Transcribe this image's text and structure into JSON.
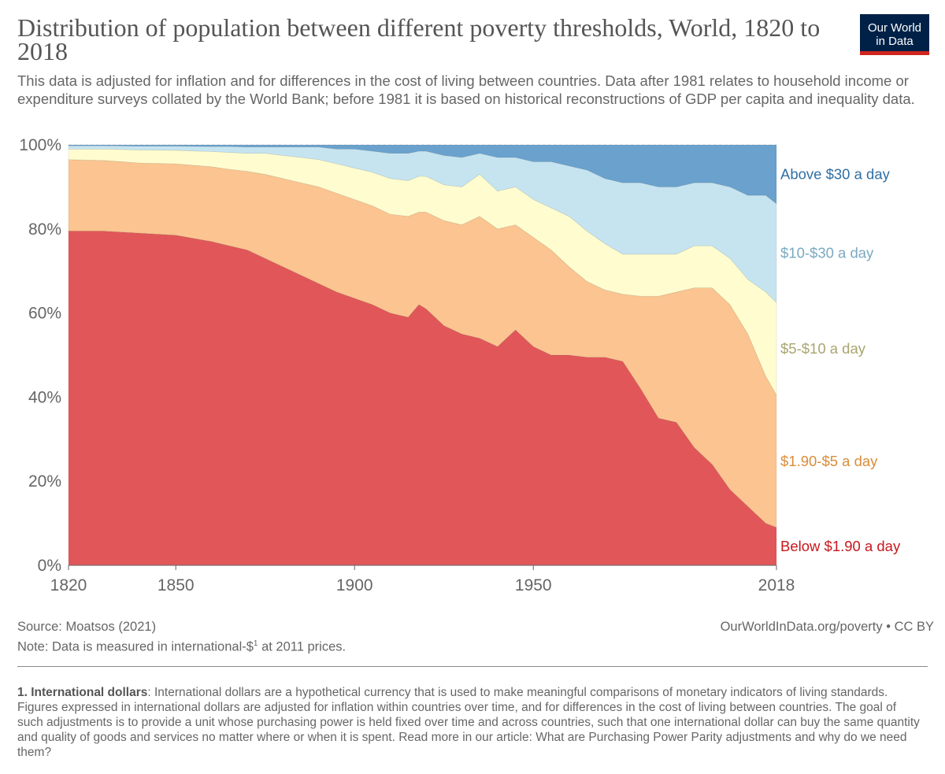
{
  "header": {
    "title": "Distribution of population between different poverty thresholds, World, 1820 to 2018",
    "subtitle": "This data is adjusted for inflation and for differences in the cost of living between countries. Data after 1981 relates to household income or expenditure surveys collated by the World Bank; before 1981 it is based on historical reconstructions of GDP per capita and inequality data.",
    "logo_line1": "Our World",
    "logo_line2": "in Data"
  },
  "footer": {
    "source": "Source: Moatsos (2021)",
    "note_prefix": "Note: Data is measured in international-$",
    "note_sup": "1",
    "note_suffix": " at 2011 prices.",
    "license": "OurWorldInData.org/poverty • CC BY",
    "footnote_title": "1. International dollars",
    "footnote_text": ": International dollars are a hypothetical currency that is used to make meaningful comparisons of monetary indicators of living standards. Figures expressed in international dollars are adjusted for inflation within countries over time, and for differences in the cost of living between countries. The goal of such adjustments is to provide a unit whose purchasing power is held fixed over time and across countries, such that one international dollar can buy the same quantity and quality of goods and services no matter where or when it is spent. Read more in our article: What are Purchasing Power Parity adjustments and why do we need them?"
  },
  "colors": {
    "below_1_90": "#e15759",
    "1_90_to_5": "#fbc490",
    "5_to_10": "#fffdcf",
    "10_to_30": "#c6e4f0",
    "above_30": "#6aa2cd",
    "label_below_1_90": "#c7171d",
    "label_1_90_to_5": "#d98d3a",
    "label_5_to_10": "#a9a570",
    "label_10_to_30": "#7aa9c0",
    "label_above_30": "#2f6fa3"
  },
  "chart_data": {
    "type": "area",
    "stacked": true,
    "xlim": [
      1820,
      2018
    ],
    "ylim": [
      0,
      100
    ],
    "x_ticks": [
      1820,
      1850,
      1900,
      1950,
      2018
    ],
    "y_ticks": [
      0,
      20,
      40,
      60,
      80,
      100
    ],
    "y_tick_labels": [
      "0%",
      "20%",
      "40%",
      "60%",
      "80%",
      "100%"
    ],
    "x": [
      1820,
      1830,
      1840,
      1850,
      1860,
      1865,
      1870,
      1875,
      1880,
      1885,
      1890,
      1895,
      1900,
      1905,
      1910,
      1915,
      1918,
      1920,
      1925,
      1930,
      1935,
      1940,
      1945,
      1950,
      1955,
      1960,
      1965,
      1970,
      1975,
      1980,
      1985,
      1990,
      1995,
      2000,
      2005,
      2010,
      2015,
      2018
    ],
    "series": [
      {
        "name": "Below $1.90 a day",
        "color_key": "below_1_90",
        "label_color_key": "label_below_1_90",
        "values": [
          79.5,
          79.5,
          79.0,
          78.5,
          77.0,
          76.0,
          75.0,
          73.0,
          71.0,
          69.0,
          67.0,
          65.0,
          63.5,
          62.0,
          60.0,
          59.0,
          62.0,
          61.0,
          57.0,
          55.0,
          54.0,
          52.0,
          56.0,
          52.0,
          50.0,
          50.0,
          49.5,
          49.5,
          48.5,
          42.0,
          35.0,
          34.0,
          28.0,
          24.0,
          18.0,
          14.0,
          10.0,
          9.0
        ]
      },
      {
        "name": "$1.90-$5 a day",
        "color_key": "1_90_to_5",
        "label_color_key": "label_1_90_to_5",
        "values": [
          17.0,
          16.8,
          16.7,
          17.0,
          17.8,
          18.2,
          18.7,
          20.0,
          21.0,
          22.0,
          23.0,
          23.5,
          23.5,
          23.5,
          23.5,
          24.0,
          22.0,
          23.0,
          25.0,
          26.0,
          29.0,
          28.0,
          25.0,
          26.0,
          25.0,
          21.0,
          18.0,
          16.0,
          16.0,
          22.0,
          29.0,
          31.0,
          38.0,
          42.0,
          44.0,
          41.0,
          35.0,
          31.5
        ]
      },
      {
        "name": "$5-$10 a day",
        "color_key": "5_to_10",
        "label_color_key": "label_5_to_10",
        "values": [
          2.5,
          2.7,
          3.1,
          3.2,
          3.6,
          4.0,
          4.3,
          5.0,
          5.5,
          6.0,
          6.5,
          7.0,
          7.5,
          8.0,
          8.5,
          8.5,
          8.5,
          8.5,
          8.5,
          9.0,
          10.0,
          9.0,
          9.0,
          9.0,
          10.0,
          12.0,
          12.0,
          11.0,
          9.5,
          10.0,
          10.0,
          9.0,
          10.0,
          10.0,
          11.0,
          13.0,
          20.0,
          22.0
        ]
      },
      {
        "name": "$10-$30 a day",
        "color_key": "10_to_30",
        "label_color_key": "label_10_to_30",
        "values": [
          0.8,
          0.8,
          0.9,
          1.0,
          1.2,
          1.4,
          1.5,
          1.5,
          2.0,
          2.5,
          3.0,
          3.5,
          4.5,
          5.0,
          6.0,
          6.5,
          6.0,
          6.0,
          7.0,
          7.0,
          5.0,
          8.0,
          7.0,
          9.0,
          11.0,
          12.0,
          14.5,
          15.5,
          17.0,
          17.0,
          16.0,
          16.0,
          15.0,
          15.0,
          17.0,
          20.0,
          23.0,
          23.5
        ]
      },
      {
        "name": "Above $30 a day",
        "color_key": "above_30",
        "label_color_key": "label_above_30",
        "values": [
          0.2,
          0.2,
          0.3,
          0.3,
          0.4,
          0.4,
          0.5,
          0.5,
          0.5,
          0.5,
          0.5,
          1.0,
          1.0,
          1.5,
          2.0,
          2.0,
          1.5,
          1.5,
          2.5,
          3.0,
          2.0,
          3.0,
          3.0,
          4.0,
          4.0,
          5.0,
          6.0,
          8.0,
          9.0,
          9.0,
          10.0,
          10.0,
          9.0,
          9.0,
          10.0,
          12.0,
          12.0,
          14.0
        ]
      }
    ]
  }
}
